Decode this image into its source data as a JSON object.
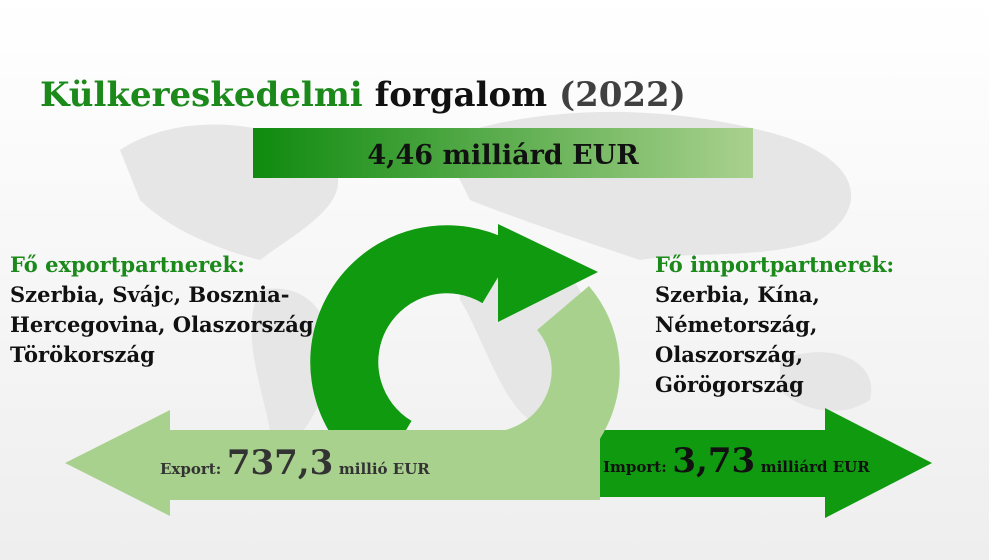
{
  "header": {
    "title_green": "Külkereskedelmi",
    "title_black": "forgalom",
    "title_year": "(2022)"
  },
  "banner": {
    "text": "4,46 milliárd EUR"
  },
  "export_partners": {
    "heading": "Fő exportpartnerek:",
    "lines": [
      "Szerbia, Svájc, Bosznia-",
      "Hercegovina, Olaszország,",
      "Törökország"
    ]
  },
  "import_partners": {
    "heading": "Fő importpartnerek:",
    "lines": [
      "Szerbia, Kína,",
      "Németország,",
      "Olaszország,",
      "Görögország"
    ]
  },
  "export_arrow": {
    "label": "Export:",
    "amount": "737,3",
    "unit": "millió EUR"
  },
  "import_arrow": {
    "label": "Import:",
    "amount": "3,73",
    "unit": "milliárd EUR"
  }
}
